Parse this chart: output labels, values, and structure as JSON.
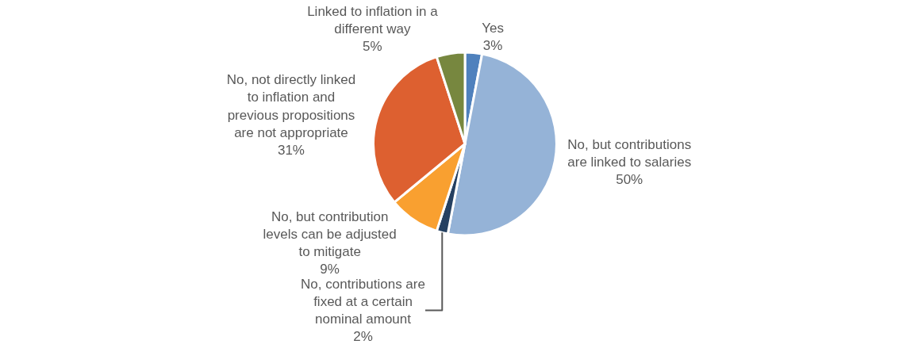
{
  "chart_data": {
    "type": "pie",
    "categories": [
      "Yes",
      "No, but contributions are linked to salaries",
      "No, contributions are fixed at a certain nominal amount",
      "No, but contribution levels can be adjusted to mitigate",
      "No, not directly linked to inflation and previous propositions are not appropriate",
      "Linked to inflation in a different way"
    ],
    "values": [
      3,
      50,
      2,
      9,
      31,
      5
    ],
    "value_labels": [
      "3%",
      "50%",
      "2%",
      "9%",
      "31%",
      "5%"
    ],
    "colors": [
      "#4f81bd",
      "#95b3d7",
      "#254061",
      "#f9a030",
      "#dd6030",
      "#77873f"
    ],
    "legend": false
  }
}
